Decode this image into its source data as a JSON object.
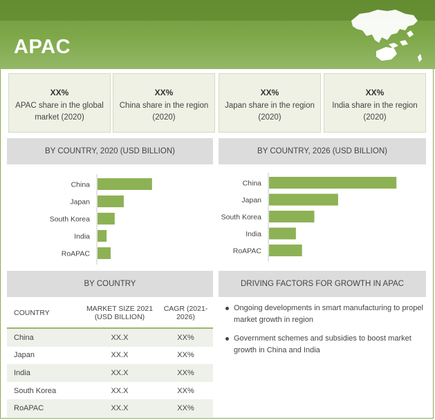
{
  "header": {
    "title": "APAC"
  },
  "stats": [
    {
      "value": "XX%",
      "label": "APAC share in the global market (2020)"
    },
    {
      "value": "XX%",
      "label": "China share in the region (2020)"
    },
    {
      "value": "XX%",
      "label": "Japan share in the region (2020)"
    },
    {
      "value": "XX%",
      "label": "India share in the region (2020)"
    }
  ],
  "sections": {
    "chart2020": "BY COUNTRY, 2020 (USD BILLION)",
    "chart2026": "BY COUNTRY, 2026 (USD BILLION)",
    "table": "BY COUNTRY",
    "drivers": "DRIVING FACTORS FOR GROWTH IN APAC"
  },
  "colors": {
    "accent": "#8db255",
    "header": "#7aa244",
    "panel": "#eef1e4",
    "band": "#dcdcdc"
  },
  "chart_data": [
    {
      "type": "bar",
      "orientation": "horizontal",
      "title": "BY COUNTRY, 2020 (USD BILLION)",
      "categories": [
        "China",
        "Japan",
        "South Korea",
        "India",
        "RoAPAC"
      ],
      "values": [
        5.4,
        2.6,
        1.7,
        0.9,
        1.3
      ],
      "xlim": [
        0,
        10
      ],
      "grid": false,
      "color": "#8db255"
    },
    {
      "type": "bar",
      "orientation": "horizontal",
      "title": "BY COUNTRY, 2026 (USD BILLION)",
      "categories": [
        "China",
        "Japan",
        "South Korea",
        "India",
        "RoAPAC"
      ],
      "values": [
        8.3,
        4.5,
        2.95,
        1.75,
        2.15
      ],
      "xlim": [
        0,
        10
      ],
      "grid": false,
      "color": "#8db255"
    }
  ],
  "table": {
    "headers": [
      "COUNTRY",
      "MARKET SIZE 2021 (USD BILLION)",
      "CAGR (2021-2026)"
    ],
    "rows": [
      [
        "China",
        "XX.X",
        "XX%"
      ],
      [
        "Japan",
        "XX.X",
        "XX%"
      ],
      [
        "India",
        "XX.X",
        "XX%"
      ],
      [
        "South Korea",
        "XX.X",
        "XX%"
      ],
      [
        "RoAPAC",
        "XX.X",
        "XX%"
      ]
    ]
  },
  "drivers": [
    "Ongoing developments in smart manufacturing to propel market growth in region",
    "Government schemes and subsidies to boost market growth in China and India"
  ]
}
